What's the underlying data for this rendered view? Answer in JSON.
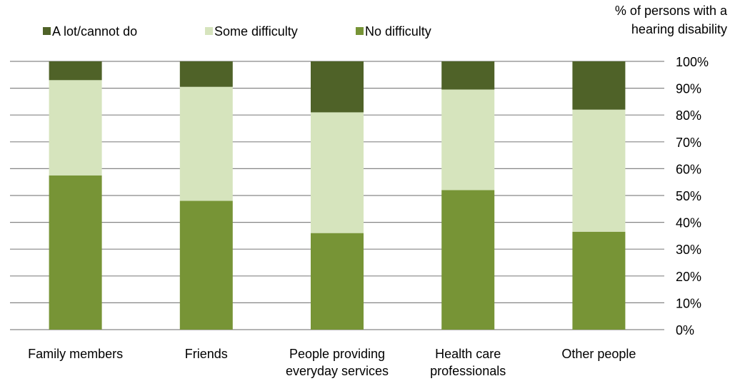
{
  "chart_data": {
    "type": "bar",
    "stacked": true,
    "percent_stacked": true,
    "title": "",
    "xlabel": "",
    "ylabel": [
      "% of persons with a",
      "hearing disability"
    ],
    "ylim": [
      0,
      100
    ],
    "yticks": [
      "0%",
      "10%",
      "20%",
      "30%",
      "40%",
      "50%",
      "60%",
      "70%",
      "80%",
      "90%",
      "100%"
    ],
    "y_axis_side": "right",
    "grid": true,
    "legend_position": "top-left",
    "categories": [
      [
        "Family members"
      ],
      [
        "Friends"
      ],
      [
        "People providing",
        "everyday services"
      ],
      [
        "Health care",
        "professionals"
      ],
      [
        "Other people"
      ]
    ],
    "series": [
      {
        "name": "No difficulty",
        "color": "#779436",
        "values": [
          57.5,
          48,
          36,
          52,
          36.5
        ]
      },
      {
        "name": "Some difficulty",
        "color": "#d6e4bd",
        "values": [
          35.5,
          42.5,
          45,
          37.5,
          45.5
        ]
      },
      {
        "name": "A lot/cannot do",
        "color": "#4f6228",
        "values": [
          7,
          9.5,
          19,
          10.5,
          18
        ]
      }
    ],
    "legend_order": [
      "A lot/cannot do",
      "Some difficulty",
      "No difficulty"
    ]
  }
}
